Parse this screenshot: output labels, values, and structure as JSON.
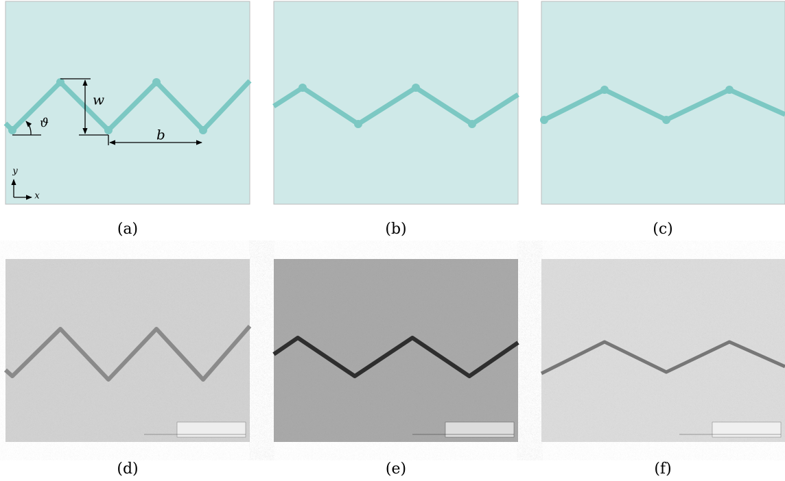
{
  "panels": [
    {
      "label": "(a)"
    },
    {
      "label": "(b)"
    },
    {
      "label": "(c)"
    },
    {
      "label": "(d)"
    },
    {
      "label": "(e)"
    },
    {
      "label": "(f)"
    }
  ],
  "annotations": {
    "amplitude": "w",
    "period": "b",
    "angle": "ϑ",
    "y_axis": "y",
    "x_axis": "x"
  }
}
